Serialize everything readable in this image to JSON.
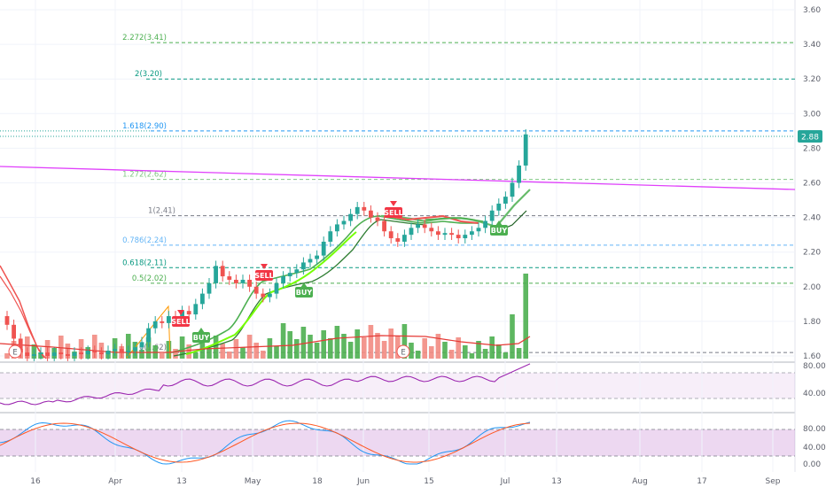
{
  "price_axis": {
    "labels": [
      "3.60",
      "3.40",
      "3.20",
      "3.00",
      "2.80",
      "2.60",
      "2.40",
      "2.20",
      "2.00",
      "1.80",
      "1.60"
    ],
    "last_price": "2.88",
    "last_price_color": "#26a69a"
  },
  "rsi_axis": {
    "labels": [
      "80.00",
      "40.00"
    ]
  },
  "stoch_axis": {
    "labels": [
      "80.00",
      "40.00",
      "0.00"
    ]
  },
  "time_axis": {
    "labels": [
      "16",
      "Apr",
      "13",
      "May",
      "18",
      "Jun",
      "15",
      "Jul",
      "13",
      "Aug",
      "17",
      "Sep"
    ]
  },
  "fib_levels": [
    {
      "label": "2.272(3.41)",
      "color": "#4caf50"
    },
    {
      "label": "2(3.20)",
      "color": "#089981"
    },
    {
      "label": "1.618(2.90)",
      "color": "#2196f3"
    },
    {
      "label": "1.272(2.62)",
      "color": "#81c784"
    },
    {
      "label": "1(2.41)",
      "color": "#787b86"
    },
    {
      "label": "0.786(2.24)",
      "color": "#64b5f6"
    },
    {
      "label": "0.618(2.11)",
      "color": "#089981"
    },
    {
      "label": "0.5(2.02)",
      "color": "#4caf50"
    },
    {
      "label": "0(1.62)",
      "color": "#787b86"
    }
  ],
  "signals": [
    {
      "label": "SELL",
      "kind": "sell"
    },
    {
      "label": "BUY",
      "kind": "buy"
    },
    {
      "label": "SELL",
      "kind": "sell"
    },
    {
      "label": "BUY",
      "kind": "buy"
    },
    {
      "label": "SELL",
      "kind": "sell"
    },
    {
      "label": "BUY",
      "kind": "buy"
    }
  ],
  "earnings_marker": "E",
  "colors": {
    "up": "#26a69a",
    "down": "#ef5350",
    "vol_up": "#4caf50",
    "vol_down": "#f28b82",
    "trendline": "#e040fb",
    "rsi_line": "#9c27b0",
    "stoch_k": "#2196f3",
    "stoch_d": "#ff5722"
  },
  "chart_data": {
    "type": "candlestick",
    "y_range": [
      1.6,
      3.6
    ],
    "last_price": 2.88,
    "fib_values": [
      3.41,
      3.2,
      2.9,
      2.62,
      2.41,
      2.24,
      2.11,
      2.02,
      1.62
    ],
    "close_path": [
      1.78,
      1.7,
      1.62,
      1.6,
      1.61,
      1.62,
      1.6,
      1.62,
      1.61,
      1.6,
      1.62,
      1.61,
      1.63,
      1.62,
      1.61,
      1.63,
      1.64,
      1.62,
      1.63,
      1.65,
      1.68,
      1.76,
      1.8,
      1.79,
      1.83,
      1.82,
      1.86,
      1.84,
      1.9,
      1.96,
      2.02,
      2.12,
      2.06,
      2.04,
      2.02,
      2.04,
      2.0,
      1.96,
      1.94,
      1.96,
      2.02,
      2.06,
      2.08,
      2.1,
      2.14,
      2.16,
      2.18,
      2.26,
      2.32,
      2.36,
      2.38,
      2.42,
      2.46,
      2.44,
      2.4,
      2.38,
      2.32,
      2.28,
      2.26,
      2.3,
      2.34,
      2.36,
      2.34,
      2.32,
      2.3,
      2.31,
      2.3,
      2.28,
      2.3,
      2.32,
      2.34,
      2.38,
      2.44,
      2.48,
      2.52,
      2.6,
      2.7,
      2.88
    ]
  }
}
